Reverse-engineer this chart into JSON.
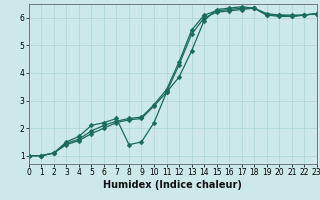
{
  "line1_x": [
    0,
    1,
    2,
    3,
    4,
    5,
    6,
    7,
    8,
    9,
    10,
    11,
    12,
    13,
    14,
    15,
    16,
    17,
    18,
    19,
    20,
    21,
    22,
    23
  ],
  "line1_y": [
    1.0,
    1.0,
    1.1,
    1.45,
    1.6,
    1.9,
    2.1,
    2.25,
    2.35,
    2.4,
    2.85,
    3.4,
    4.4,
    5.55,
    6.1,
    6.25,
    6.3,
    6.35,
    6.35,
    6.1,
    6.1,
    6.1,
    6.1,
    6.15
  ],
  "line2_x": [
    0,
    1,
    2,
    3,
    4,
    5,
    6,
    7,
    8,
    9,
    10,
    11,
    12,
    13,
    14,
    15,
    16,
    17,
    18,
    19,
    20,
    21,
    22,
    23
  ],
  "line2_y": [
    1.0,
    1.0,
    1.1,
    1.5,
    1.7,
    2.1,
    2.2,
    2.35,
    1.4,
    1.5,
    2.2,
    3.3,
    3.85,
    4.8,
    5.9,
    6.3,
    6.35,
    6.4,
    6.35,
    6.15,
    6.1,
    6.05,
    6.1,
    6.15
  ],
  "line3_x": [
    0,
    1,
    2,
    3,
    4,
    5,
    6,
    7,
    8,
    9,
    10,
    11,
    12,
    13,
    14,
    15,
    16,
    17,
    18,
    19,
    20,
    21,
    22,
    23
  ],
  "line3_y": [
    1.0,
    1.0,
    1.1,
    1.4,
    1.55,
    1.8,
    2.0,
    2.2,
    2.3,
    2.35,
    2.8,
    3.3,
    4.3,
    5.4,
    6.0,
    6.2,
    6.25,
    6.3,
    6.35,
    6.1,
    6.05,
    6.05,
    6.1,
    6.15
  ],
  "xlabel": "Humidex (Indice chaleur)",
  "xlim": [
    0,
    23
  ],
  "ylim": [
    0.7,
    6.5
  ],
  "yticks": [
    1,
    2,
    3,
    4,
    5,
    6
  ],
  "xticks": [
    0,
    1,
    2,
    3,
    4,
    5,
    6,
    7,
    8,
    9,
    10,
    11,
    12,
    13,
    14,
    15,
    16,
    17,
    18,
    19,
    20,
    21,
    22,
    23
  ],
  "bg_color": "#cce8e8",
  "grid_color": "#aad4d4",
  "line_color": "#1a6b5a",
  "xlabel_fontsize": 7,
  "tick_fontsize": 5.5,
  "marker": "D",
  "markersize": 2.5,
  "linewidth": 0.9
}
